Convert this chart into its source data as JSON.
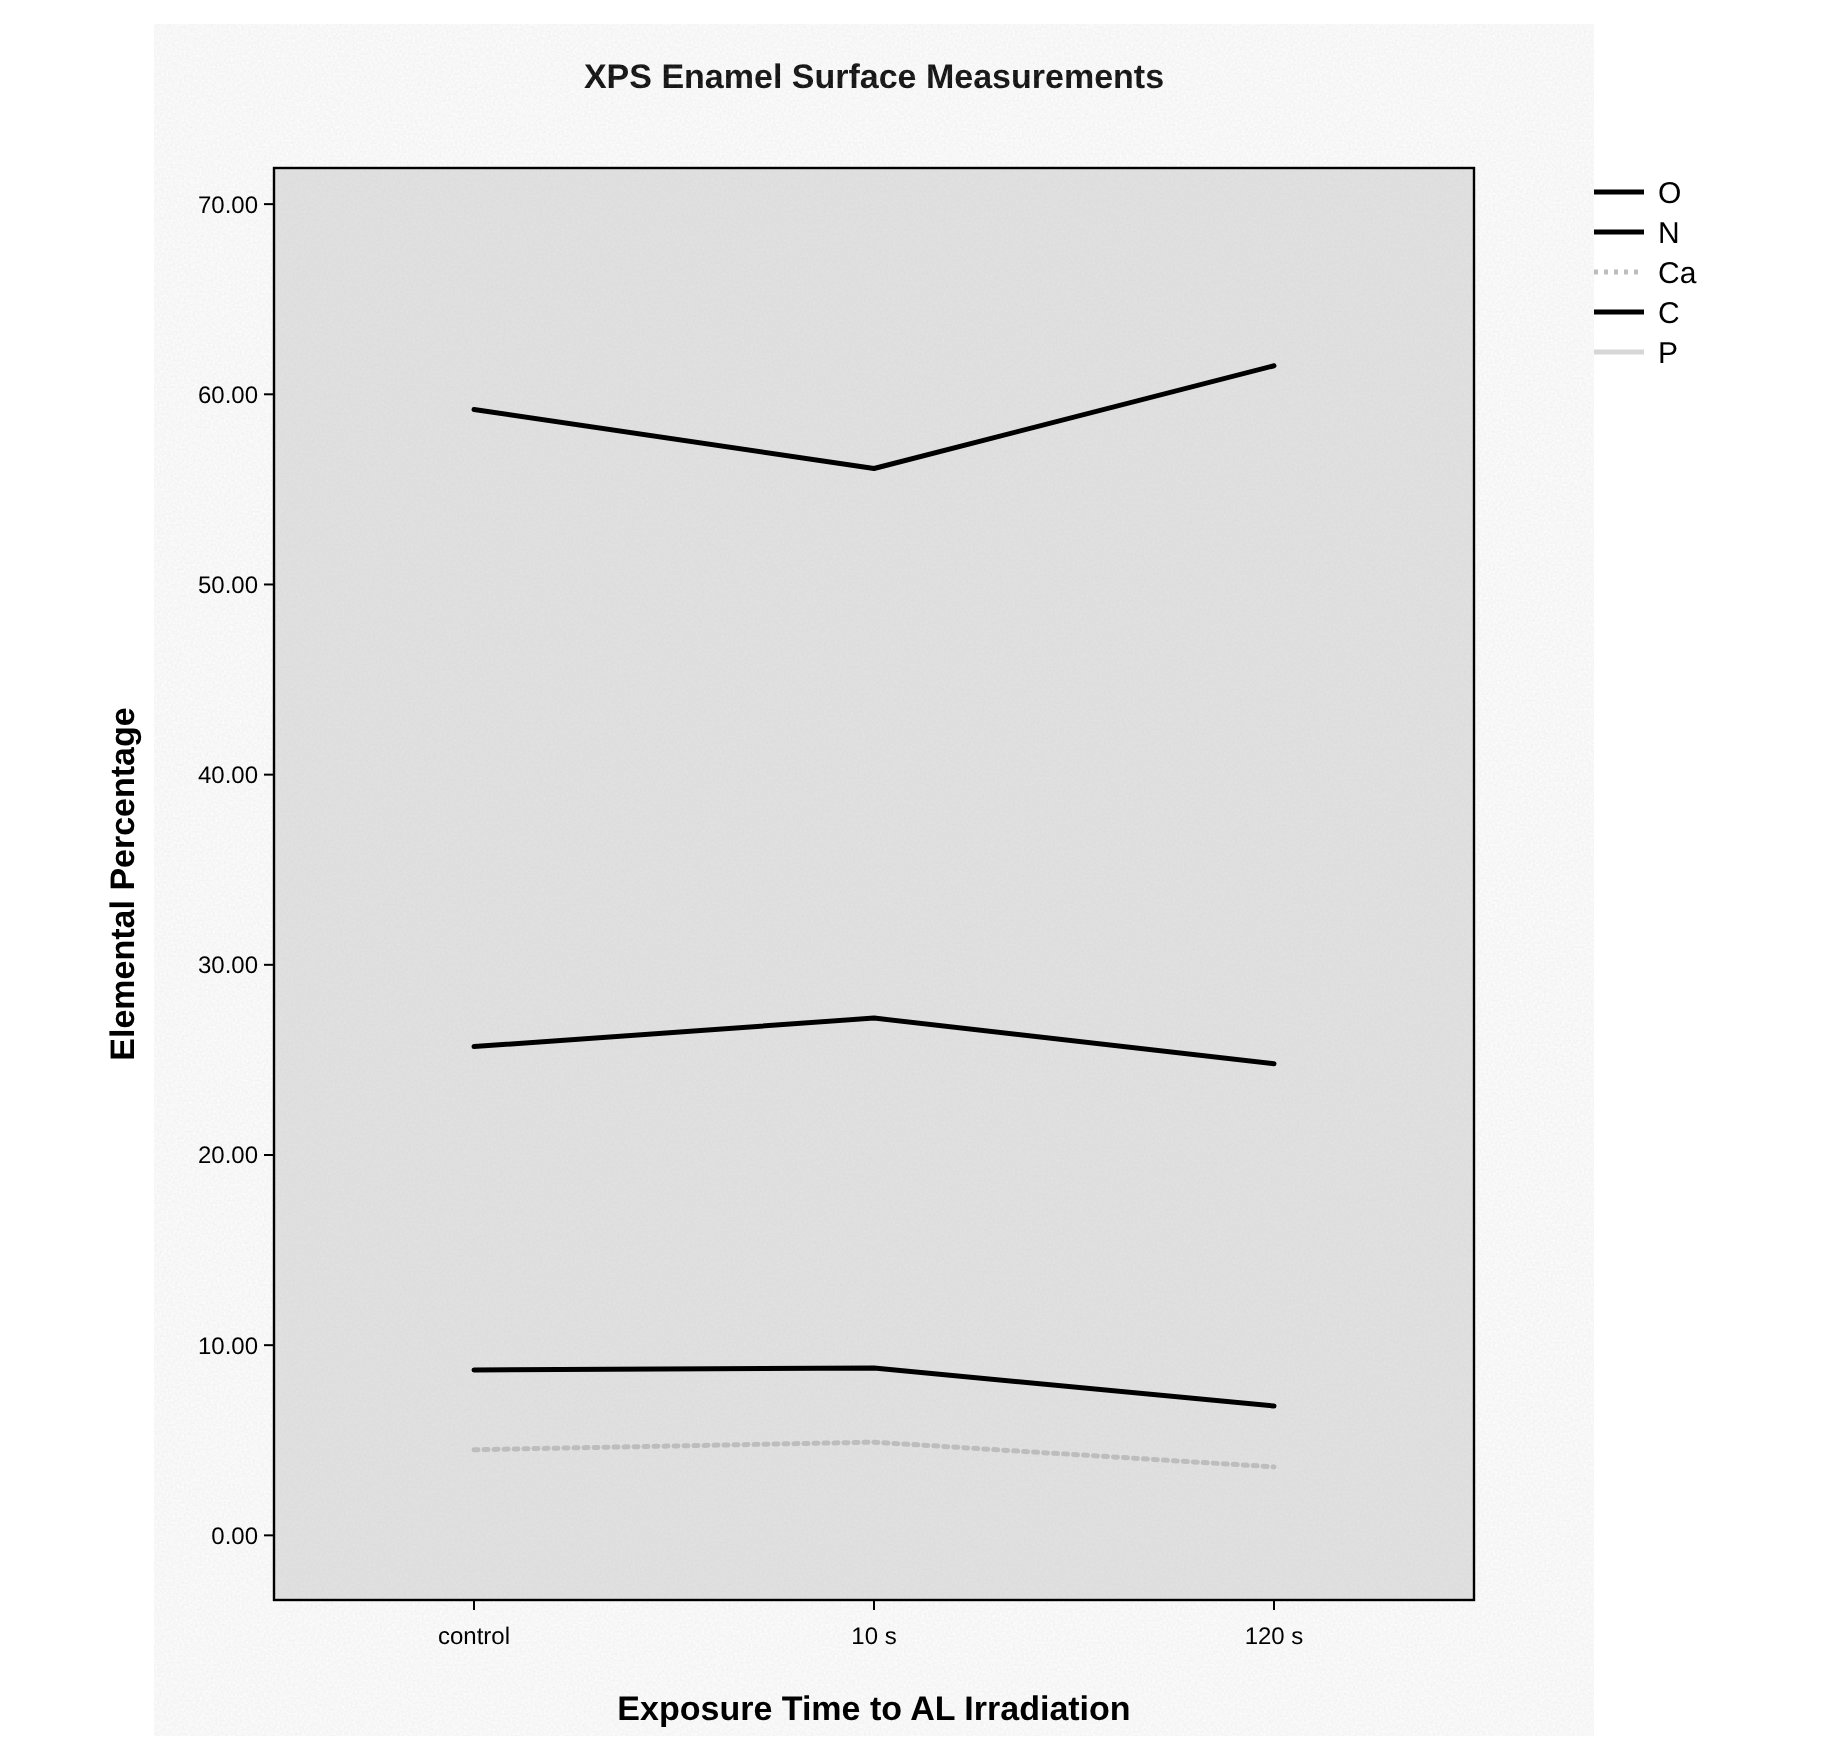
{
  "chart_data": {
    "type": "line",
    "title": "XPS Enamel Surface Measurements",
    "xlabel": "Exposure Time to AL Irradiation",
    "ylabel": "Elemental Percentage",
    "categories": [
      "control",
      "10 s",
      "120 s"
    ],
    "series": [
      {
        "name": "O",
        "color": "#000000",
        "values": [
          59.2,
          56.1,
          61.5
        ]
      },
      {
        "name": "N",
        "color": "#000000",
        "values": [
          8.7,
          8.8,
          6.8
        ]
      },
      {
        "name": "Ca",
        "color": "#bdbdbd",
        "line_style": "dotted",
        "values": [
          4.5,
          4.9,
          3.6
        ]
      },
      {
        "name": "C",
        "color": "#000000",
        "values": [
          25.7,
          27.2,
          24.8
        ]
      },
      {
        "name": "P",
        "color": "#d6d6d6",
        "values": [
          null,
          null,
          null
        ]
      }
    ],
    "ylim": [
      -3.4,
      71.9
    ],
    "yticks": [
      {
        "value": 0,
        "label": "0.00"
      },
      {
        "value": 10,
        "label": "10.00"
      },
      {
        "value": 20,
        "label": "20.00"
      },
      {
        "value": 30,
        "label": "30.00"
      },
      {
        "value": 40,
        "label": "40.00"
      },
      {
        "value": 50,
        "label": "50.00"
      },
      {
        "value": 60,
        "label": "60.00"
      },
      {
        "value": 70,
        "label": "70.00"
      }
    ],
    "legend": "top right",
    "grid": false
  }
}
